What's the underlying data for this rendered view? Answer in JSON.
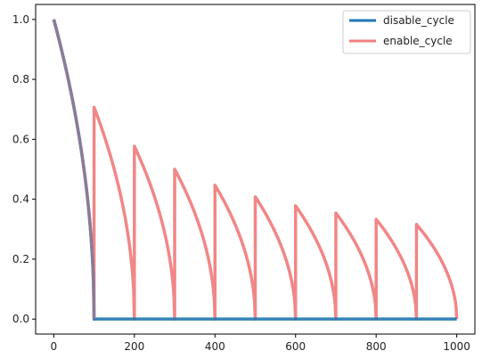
{
  "chart_data": {
    "type": "line",
    "title": "",
    "xlabel": "",
    "ylabel": "",
    "xlim": [
      -45,
      1045
    ],
    "ylim": [
      -0.05,
      1.05
    ],
    "xticks": [
      0,
      200,
      400,
      600,
      800,
      1000
    ],
    "yticks": [
      0.0,
      0.2,
      0.4,
      0.6,
      0.8,
      1.0
    ],
    "xtick_labels": [
      "0",
      "200",
      "400",
      "600",
      "800",
      "1000"
    ],
    "ytick_labels": [
      "0.0",
      "0.2",
      "0.4",
      "0.6",
      "0.8",
      "1.0"
    ],
    "grid": false,
    "legend_position": "top-right",
    "series": [
      {
        "name": "disable_cycle",
        "color": "#1f77b4",
        "points": [
          [
            0,
            1.0
          ],
          [
            10,
            0.949
          ],
          [
            20,
            0.895
          ],
          [
            30,
            0.837
          ],
          [
            40,
            0.775
          ],
          [
            50,
            0.707
          ],
          [
            60,
            0.632
          ],
          [
            70,
            0.548
          ],
          [
            80,
            0.447
          ],
          [
            90,
            0.316
          ],
          [
            95,
            0.224
          ],
          [
            100,
            0.0
          ],
          [
            1000,
            0.0
          ]
        ]
      },
      {
        "name": "enable_cycle",
        "color": "#f08080",
        "cycles": [
          {
            "start": 0,
            "peak": 1.0
          },
          {
            "start": 100,
            "peak": 0.707
          },
          {
            "start": 200,
            "peak": 0.577
          },
          {
            "start": 300,
            "peak": 0.5
          },
          {
            "start": 400,
            "peak": 0.447
          },
          {
            "start": 500,
            "peak": 0.408
          },
          {
            "start": 600,
            "peak": 0.378
          },
          {
            "start": 700,
            "peak": 0.354
          },
          {
            "start": 800,
            "peak": 0.333
          },
          {
            "start": 900,
            "peak": 0.316
          }
        ],
        "cycle_length": 100
      }
    ]
  }
}
